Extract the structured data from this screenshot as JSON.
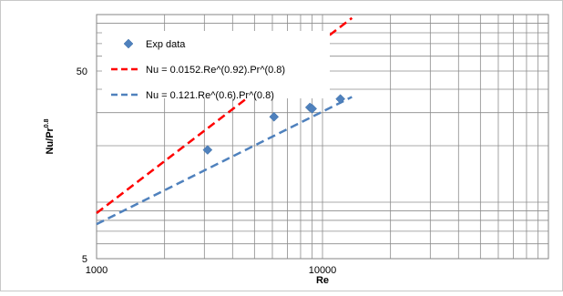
{
  "chart_data": {
    "type": "scatter",
    "xlabel": "Re",
    "ylabel_main": "Nu/Pr",
    "ylabel_sup": "0.8",
    "x_scale": "log",
    "y_scale": "log",
    "xlim": [
      1000,
      100000
    ],
    "ylim": [
      5,
      100
    ],
    "x_tick_labels": [
      {
        "value": 1000,
        "label": "1000"
      },
      {
        "value": 10000,
        "label": "10000"
      }
    ],
    "y_tick_labels": [
      {
        "value": 5,
        "label": "5"
      },
      {
        "value": 50,
        "label": "50"
      }
    ],
    "grid": true,
    "legend_position": "top-left",
    "series": [
      {
        "name": "Exp data",
        "kind": "marker",
        "color": "#4F81BD",
        "points": [
          {
            "x": 3100,
            "y": 19.0
          },
          {
            "x": 6100,
            "y": 28.5
          },
          {
            "x": 8800,
            "y": 32.0
          },
          {
            "x": 9000,
            "y": 31.5
          },
          {
            "x": 12000,
            "y": 35.5
          }
        ]
      },
      {
        "name": "Nu = 0.0152.Re^(0.92).Pr^(0.8)",
        "kind": "dashed-line",
        "color": "#FF0000",
        "coefficient": 0.0152,
        "exponent": 0.92,
        "x_range": [
          1000,
          13500
        ]
      },
      {
        "name": "Nu = 0.121.Re^(0.6).Pr^(0.8)",
        "kind": "dashed-line",
        "color": "#4F81BD",
        "coefficient": 0.121,
        "exponent": 0.6,
        "x_range": [
          1000,
          13500
        ]
      }
    ]
  }
}
